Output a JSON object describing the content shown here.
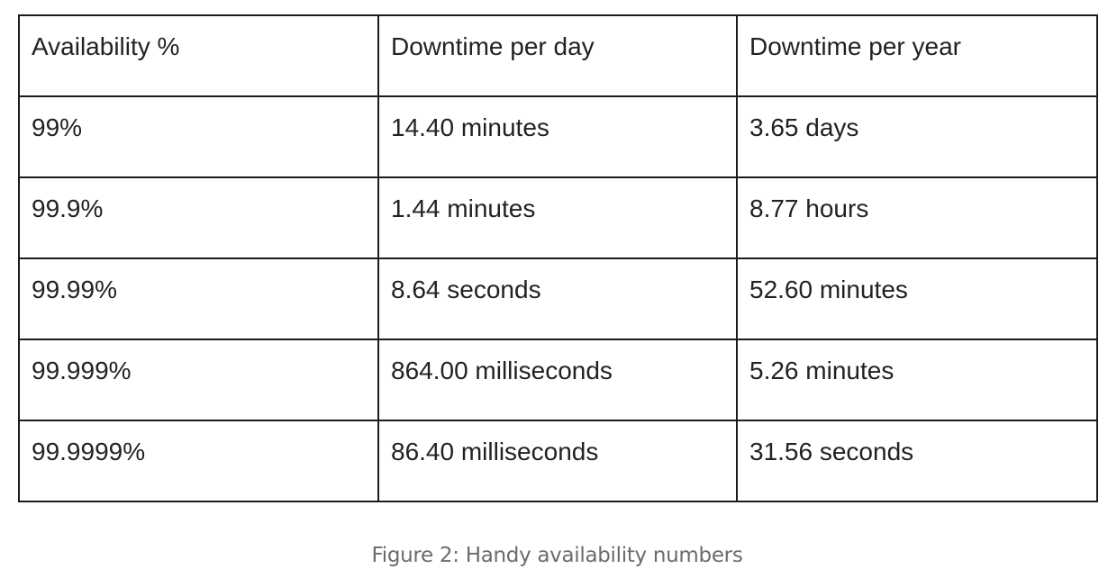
{
  "table": {
    "headers": [
      "Availability %",
      "Downtime per day",
      "Downtime per year"
    ],
    "rows": [
      [
        "99%",
        "14.40 minutes",
        "3.65 days"
      ],
      [
        "99.9%",
        "1.44 minutes",
        "8.77 hours"
      ],
      [
        "99.99%",
        "8.64 seconds",
        "52.60 minutes"
      ],
      [
        "99.999%",
        "864.00 milliseconds",
        "5.26 minutes"
      ],
      [
        "99.9999%",
        "86.40 milliseconds",
        "31.56 seconds"
      ]
    ]
  },
  "caption": "Figure 2: Handy availability numbers"
}
